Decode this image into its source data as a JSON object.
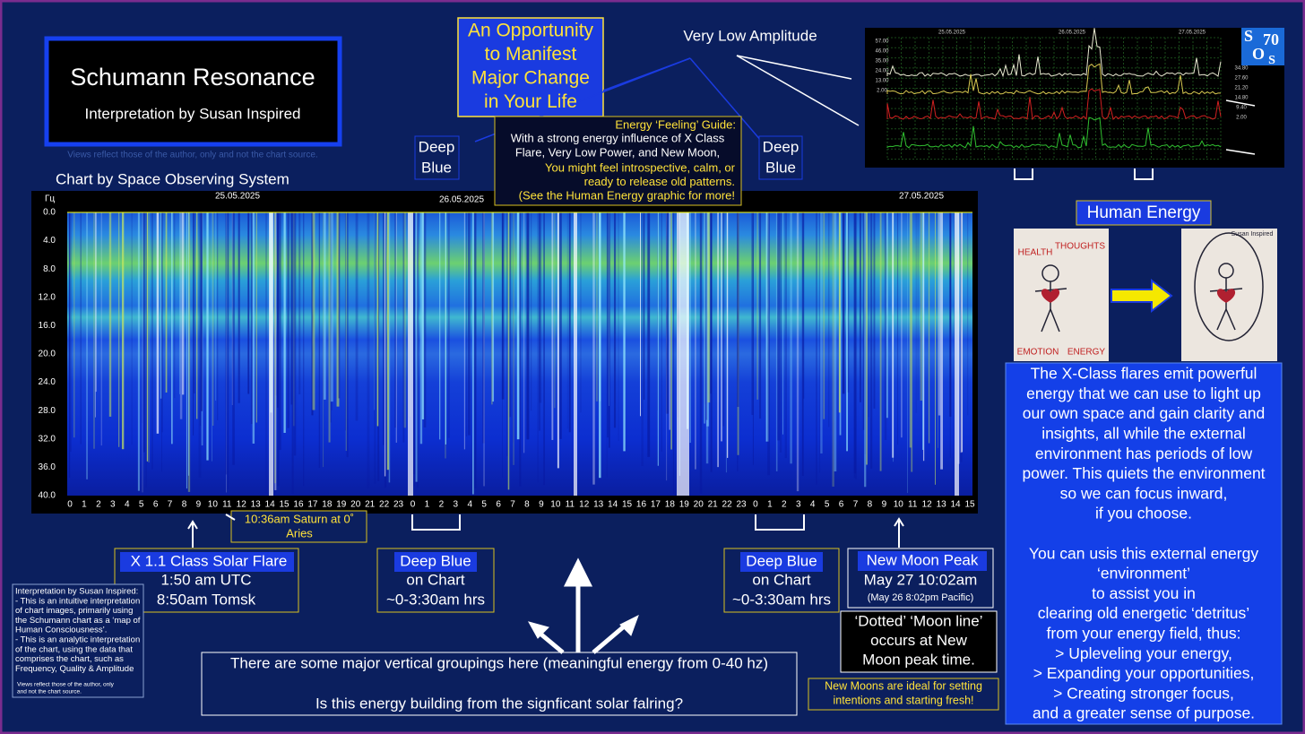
{
  "title_box": {
    "title": "Schumann Resonance",
    "subtitle": "Interpretation by Susan Inspired",
    "disclaimer": "Views reflect those of the author, only and not the chart source."
  },
  "chart_credit": "Chart by  Space  Observing System",
  "opportunity": [
    "An Opportunity",
    "to Manifest",
    "Major Change",
    "in Your Life"
  ],
  "very_low_amplitude": "Very Low Amplitude",
  "deep_blue_top": [
    [
      "Deep",
      "Blue"
    ],
    [
      "Deep",
      "Blue"
    ]
  ],
  "guide": {
    "heading": "Energy ‘Feeling’ Guide:",
    "white_lines": [
      "With a strong energy influence of X Class",
      "Flare, Very Low Power, and New Moon,"
    ],
    "yellow_lines": [
      "You might feel introspective, calm, or",
      "ready to release old patterns.",
      "(See the Human Energy graphic for more!"
    ]
  },
  "spectrogram": {
    "unit": "Гц",
    "dates": [
      "25.05.2025",
      "26.05.2025",
      "27.05.2025"
    ],
    "yticks": [
      "0.0",
      "4.0",
      "8.0",
      "12.0",
      "16.0",
      "20.0",
      "24.0",
      "28.0",
      "32.0",
      "36.0",
      "40.0"
    ],
    "hours": [
      "0",
      "1",
      "2",
      "3",
      "4",
      "5",
      "6",
      "7",
      "8",
      "9",
      "10",
      "11",
      "12",
      "13",
      "14",
      "15",
      "16",
      "17",
      "18",
      "19",
      "20",
      "21",
      "22",
      "23",
      "0",
      "1",
      "2",
      "3",
      "4",
      "5",
      "6",
      "7",
      "8",
      "9",
      "10",
      "11",
      "12",
      "13",
      "14",
      "15",
      "16",
      "17",
      "18",
      "19",
      "20",
      "21",
      "22",
      "23",
      "0",
      "1",
      "2",
      "3",
      "4",
      "5",
      "6",
      "7",
      "8",
      "9",
      "10",
      "11",
      "12",
      "13",
      "14",
      "15"
    ]
  },
  "amplitude_chart": {
    "dates": [
      "25.05.2025",
      "26.05.2025",
      "27.05.2025"
    ],
    "left_ticks": [
      "57.00",
      "46.00",
      "35.00",
      "24.00",
      "13.00",
      "2.00"
    ],
    "right_ticks": [
      "34.80",
      "27.60",
      "21.20",
      "14.80",
      "9.40",
      "2.00"
    ],
    "logo": [
      "S",
      "70",
      "O",
      "S"
    ]
  },
  "human_energy": {
    "label": "Human Energy",
    "card_words": [
      "HEALTH",
      "THOUGHTS",
      "EMOTION",
      "ENERGY",
      "Susan Inspired"
    ]
  },
  "energy_panel": [
    "The X-Class flares emit powerful",
    "energy that we can use to light up",
    "our own space and gain clarity and",
    "insights, all while the external",
    "environment has periods of low",
    "power. This quiets the environment",
    "so we can focus inward,",
    "if you choose.",
    "",
    "You can usis this external energy",
    "‘environment’",
    "to assist you in",
    "clearing old energetic ‘detritus’",
    "from your energy field, thus:",
    "> Upleveling your energy,",
    "> Expanding your opportunities,",
    "> Creating stronger focus,",
    "and a greater sense of purpose."
  ],
  "solar_flare": {
    "heading": "X 1.1 Class Solar Flare",
    "lines": [
      "1:50 am UTC",
      "8:50am Tomsk"
    ]
  },
  "saturn": [
    "10:36am Saturn at 0˚",
    "Aries"
  ],
  "deep_blue_bottom": [
    {
      "heading": "Deep Blue",
      "lines": [
        "on Chart",
        "~0-3:30am hrs"
      ]
    },
    {
      "heading": "Deep Blue",
      "lines": [
        "on Chart",
        "~0-3:30am hrs"
      ]
    }
  ],
  "new_moon": {
    "heading": "New Moon Peak",
    "date": "May 27 10:02am",
    "pacific": "(May 26 8:02pm Pacific)"
  },
  "moon_line": [
    "‘Dotted’ ‘Moon line’",
    "occurs at New",
    "Moon peak time."
  ],
  "new_moon_tip": [
    "New Moons are ideal for setting",
    "intentions and starting fresh!"
  ],
  "interpretation_note": [
    "Interpretation by Susan Inspired:",
    "- This is an intuitive interpretation",
    "of chart images, primarily using",
    "the Schumann chart as a ‘map of",
    "Human Consciousness’.",
    "- This is an analytic interpretation",
    "of the chart, using the data that",
    "comprises the chart, such as",
    "Frequency, Quality & Amplitude"
  ],
  "interpretation_footer": [
    "Views reflect those of the author, only",
    "and not the chart source."
  ],
  "groupings": [
    "There are some major vertical groupings here (meaningful energy from 0-40 hz)",
    "Is this energy building from the signficant solar falring?"
  ]
}
